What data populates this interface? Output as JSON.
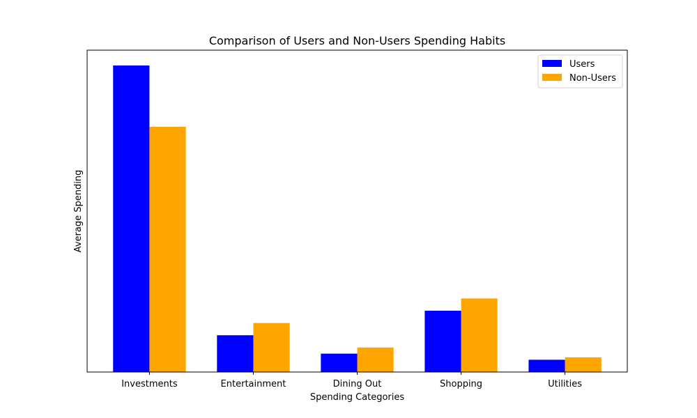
{
  "chart_data": {
    "type": "bar",
    "title": "Comparison of Users and Non-Users Spending Habits",
    "xlabel": "Spending Categories",
    "ylabel": "Average Spending",
    "categories": [
      "Investments",
      "Entertainment",
      "Dining Out",
      "Shopping",
      "Utilities"
    ],
    "series": [
      {
        "name": "Users",
        "color": "#0000ff",
        "values": [
          1500,
          180,
          90,
          300,
          60
        ]
      },
      {
        "name": "Non-Users",
        "color": "#ffa500",
        "values": [
          1200,
          240,
          120,
          360,
          72
        ]
      }
    ],
    "ylim": [
      0,
      1575
    ],
    "y_ticks_visible": false,
    "grid": false,
    "legend_position": "top-right"
  }
}
